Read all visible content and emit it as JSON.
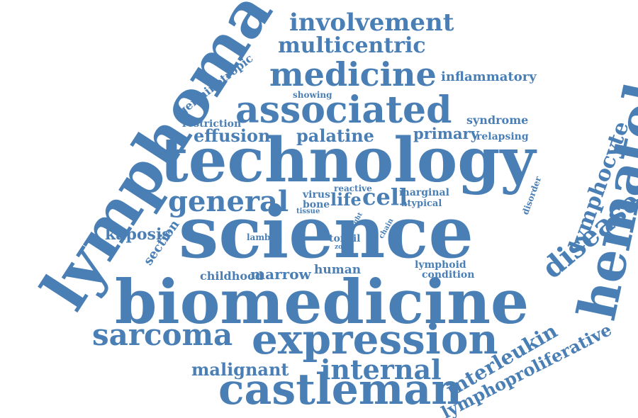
{
  "palette": {
    "word": "#4a7fb5",
    "background": "#ffffff"
  },
  "words": [
    "lymphoma",
    "germinotropic",
    "involvement",
    "multicentric",
    "medicine",
    "inflammatory",
    "hematology",
    "showing",
    "associated",
    "restriction",
    "syndrome",
    "effusion",
    "palatine",
    "primary",
    "relapsing",
    "lymphocyte",
    "technology",
    "general",
    "reactive",
    "virus",
    "life",
    "cell",
    "marginal",
    "disorder",
    "bone",
    "atypical",
    "tissue",
    "kaposis",
    "light",
    "chain",
    "disease",
    "section",
    "science",
    "lambda",
    "tonsil",
    "zone",
    "lymphoid",
    "childhood",
    "marrow",
    "human",
    "condition",
    "biomedicine",
    "sarcoma",
    "expression",
    "interleukin",
    "lymphoproliferative",
    "malignant",
    "internal",
    "castleman"
  ]
}
